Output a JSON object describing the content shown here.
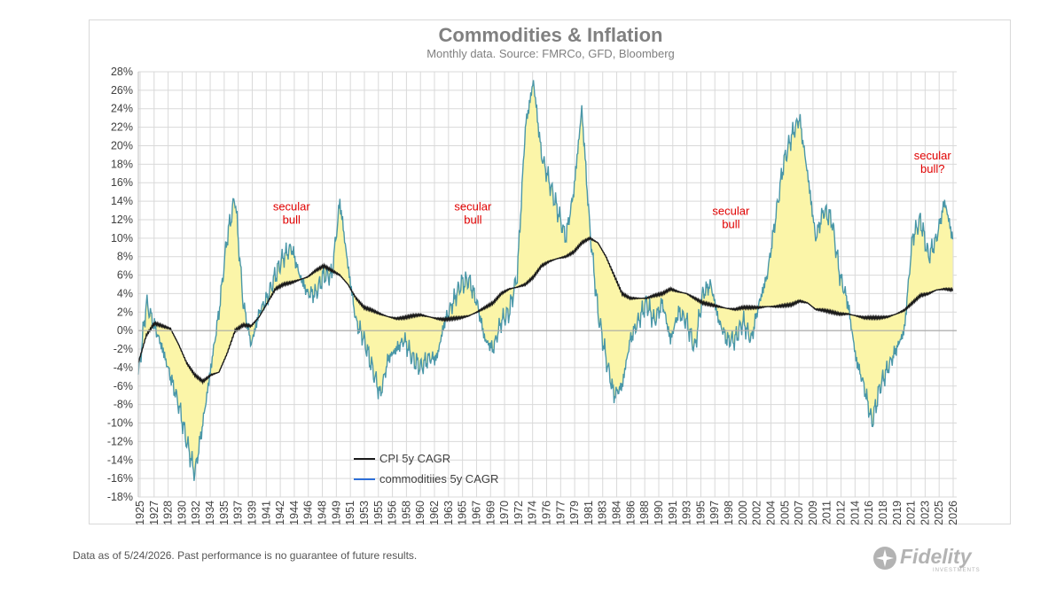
{
  "chart_data": {
    "type": "line",
    "title": "Commodities & Inflation",
    "subtitle": "Monthly data.  Source: FMRCo, GFD, Bloomberg",
    "ylim": [
      -18,
      28
    ],
    "xlim": [
      1925,
      2026.5
    ],
    "y_ticks": [
      "28%",
      "26%",
      "24%",
      "22%",
      "20%",
      "18%",
      "16%",
      "14%",
      "12%",
      "10%",
      "8%",
      "6%",
      "4%",
      "2%",
      "0%",
      "-2%",
      "-4%",
      "-6%",
      "-8%",
      "-10%",
      "-12%",
      "-14%",
      "-16%",
      "-18%"
    ],
    "x_ticks": [
      "1925",
      "1927",
      "1928",
      "1930",
      "1932",
      "1934",
      "1935",
      "1937",
      "1939",
      "1941",
      "1942",
      "1944",
      "1946",
      "1948",
      "1949",
      "1951",
      "1953",
      "1955",
      "1956",
      "1958",
      "1960",
      "1962",
      "1963",
      "1965",
      "1967",
      "1969",
      "1970",
      "1972",
      "1974",
      "1976",
      "1977",
      "1979",
      "1981",
      "1983",
      "1984",
      "1986",
      "1988",
      "1990",
      "1991",
      "1993",
      "1995",
      "1997",
      "1998",
      "2000",
      "2002",
      "2004",
      "2005",
      "2007",
      "2009",
      "2011",
      "2012",
      "2014",
      "2016",
      "2018",
      "2019",
      "2021",
      "2023",
      "2025",
      "2026"
    ],
    "grid": true,
    "fill_between": "light yellow",
    "colors": {
      "cpi": "#1a1a1a",
      "commodities": "#4a97a8",
      "fill": "#fbf5a8",
      "grid": "#d9d9d9",
      "annotation": "#e00000"
    },
    "series": [
      {
        "name": "CPI 5y CAGR",
        "x": [
          1925,
          1926,
          1927,
          1928,
          1929,
          1930,
          1931,
          1932,
          1933,
          1934,
          1935,
          1936,
          1937,
          1938,
          1939,
          1940,
          1941,
          1942,
          1943,
          1944,
          1945,
          1946,
          1947,
          1948,
          1949,
          1950,
          1951,
          1952,
          1953,
          1954,
          1955,
          1956,
          1957,
          1958,
          1959,
          1960,
          1961,
          1962,
          1963,
          1964,
          1965,
          1966,
          1967,
          1968,
          1969,
          1970,
          1971,
          1972,
          1973,
          1974,
          1975,
          1976,
          1977,
          1978,
          1979,
          1980,
          1981,
          1982,
          1983,
          1984,
          1985,
          1986,
          1987,
          1988,
          1989,
          1990,
          1991,
          1992,
          1993,
          1994,
          1995,
          1996,
          1997,
          1998,
          1999,
          2000,
          2001,
          2002,
          2003,
          2004,
          2005,
          2006,
          2007,
          2008,
          2009,
          2010,
          2011,
          2012,
          2013,
          2014,
          2015,
          2016,
          2017,
          2018,
          2019,
          2020,
          2021,
          2022,
          2023,
          2024,
          2025,
          2026
        ],
        "values": [
          -3.5,
          -0.5,
          0.8,
          0.5,
          0.2,
          -1.5,
          -3.5,
          -4.8,
          -5.5,
          -4.8,
          -4.5,
          -2.5,
          0,
          0.6,
          0.5,
          1.5,
          3,
          4.5,
          5,
          5.2,
          5.5,
          5.8,
          6.5,
          7,
          6.5,
          6,
          5,
          3.5,
          2.5,
          2.2,
          1.8,
          1.5,
          1.3,
          1.4,
          1.6,
          1.7,
          1.5,
          1.3,
          1.2,
          1.3,
          1.4,
          1.6,
          2,
          2.5,
          3,
          4,
          4.5,
          4.7,
          5,
          5.8,
          7,
          7.5,
          7.8,
          8,
          8.5,
          9.5,
          10,
          9.5,
          8,
          6,
          4,
          3.5,
          3.5,
          3.5,
          3.8,
          4,
          4.5,
          4.2,
          4,
          3.5,
          3,
          2.8,
          2.6,
          2.4,
          2.3,
          2.5,
          2.5,
          2.5,
          2.6,
          2.6,
          2.7,
          2.8,
          3.2,
          3.0,
          2.3,
          2.2,
          2.0,
          1.8,
          1.8,
          1.6,
          1.4,
          1.4,
          1.4,
          1.5,
          1.8,
          2.2,
          3,
          3.8,
          4,
          4.4,
          4.5,
          4.4
        ]
      },
      {
        "name": "commoditiies 5y CAGR",
        "x": [
          1925,
          1926,
          1927,
          1928,
          1929,
          1930,
          1931,
          1932,
          1933,
          1934,
          1935,
          1936,
          1937,
          1938,
          1939,
          1940,
          1941,
          1942,
          1943,
          1944,
          1945,
          1946,
          1947,
          1948,
          1949,
          1950,
          1951,
          1952,
          1953,
          1954,
          1955,
          1956,
          1957,
          1958,
          1959,
          1960,
          1961,
          1962,
          1963,
          1964,
          1965,
          1966,
          1967,
          1968,
          1969,
          1970,
          1971,
          1972,
          1973,
          1974,
          1975,
          1976,
          1977,
          1978,
          1979,
          1980,
          1981,
          1982,
          1983,
          1984,
          1985,
          1986,
          1987,
          1988,
          1989,
          1990,
          1991,
          1992,
          1993,
          1994,
          1995,
          1996,
          1997,
          1998,
          1999,
          2000,
          2001,
          2002,
          2003,
          2004,
          2005,
          2006,
          2007,
          2008,
          2009,
          2010,
          2011,
          2012,
          2013,
          2014,
          2015,
          2016,
          2017,
          2018,
          2019,
          2020,
          2021,
          2022,
          2023,
          2024,
          2025,
          2026
        ],
        "values": [
          -5,
          3,
          0.5,
          -2,
          -5,
          -8,
          -12,
          -15.5,
          -10,
          -4,
          2,
          10,
          14.5,
          3,
          -1.5,
          2,
          3.5,
          6,
          8,
          9,
          6,
          4,
          4,
          6,
          6,
          14,
          7,
          1,
          -1,
          -4,
          -7,
          -3,
          -2,
          -1,
          -3,
          -4,
          -3,
          -3,
          1,
          3,
          5,
          5.5,
          3,
          -1,
          -2,
          1,
          2,
          6,
          22,
          27,
          19,
          16,
          13,
          10,
          15,
          24,
          11,
          2,
          -3,
          -7,
          -6,
          -1,
          1,
          3,
          1,
          3,
          -1,
          2,
          1,
          -2,
          4,
          5,
          1,
          -1,
          -1,
          1,
          -1,
          3,
          6,
          12,
          18,
          21,
          23,
          17,
          10,
          13,
          12,
          6,
          3,
          -3,
          -6,
          -10,
          -6,
          -4,
          -2,
          0,
          10,
          12,
          8,
          10,
          14,
          10
        ]
      }
    ],
    "annotations": [
      {
        "x": 1944,
        "y": 13,
        "lines": [
          "secular",
          "bull"
        ]
      },
      {
        "x": 1966.5,
        "y": 13,
        "lines": [
          "secular",
          "bull"
        ]
      },
      {
        "x": 1998.5,
        "y": 12.5,
        "lines": [
          "secular",
          "bull"
        ]
      },
      {
        "x": 2023.5,
        "y": 18.5,
        "lines": [
          "secular",
          "bull?"
        ]
      }
    ],
    "legend": {
      "position": "lower-left",
      "entries": [
        "CPI 5y CAGR",
        "commoditiies 5y CAGR"
      ]
    }
  },
  "footnote": "Data as of 5/24/2026. Past performance is no guarantee of future results.",
  "logo": {
    "text": "Fidelity",
    "subtext": "INVESTMENTS"
  }
}
